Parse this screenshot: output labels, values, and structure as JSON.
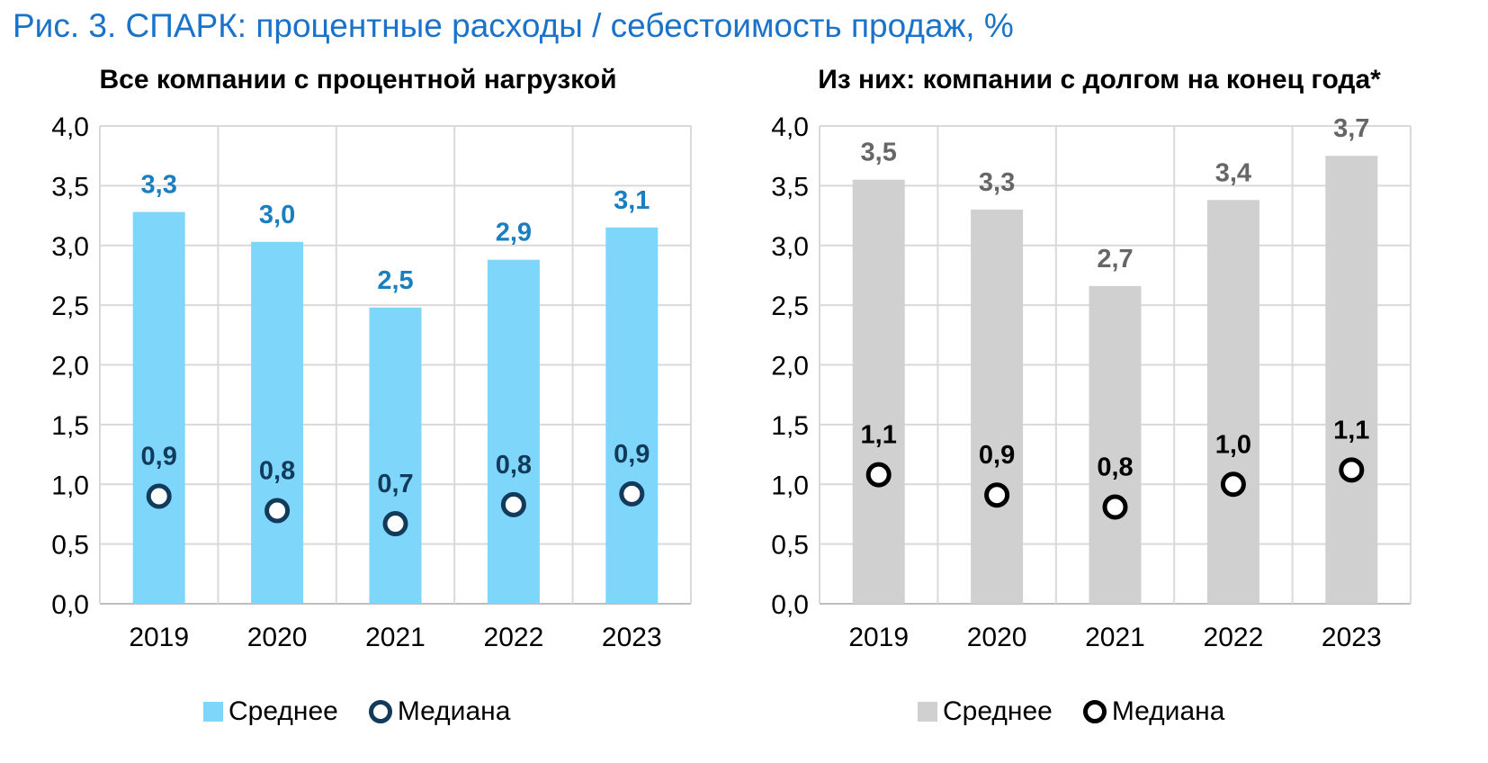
{
  "figure_title": "Рис. 3. СПАРК: процентные расходы / себестоимость продаж, %",
  "chart_data": [
    {
      "type": "bar",
      "title": "Все компании с процентной нагрузкой",
      "categories": [
        "2019",
        "2020",
        "2021",
        "2022",
        "2023"
      ],
      "ylim": [
        0,
        4
      ],
      "yticks": [
        "0,0",
        "0,5",
        "1,0",
        "1,5",
        "2,0",
        "2,5",
        "3,0",
        "3,5",
        "4,0"
      ],
      "grid": true,
      "legend_position": "bottom",
      "series": [
        {
          "name": "Среднее",
          "kind": "bar",
          "values": [
            3.28,
            3.03,
            2.48,
            2.88,
            3.15
          ],
          "labels": [
            "3,3",
            "3,0",
            "2,5",
            "2,9",
            "3,1"
          ],
          "color": "#7fd6fb",
          "label_color": "#1a7fc1"
        },
        {
          "name": "Медиана",
          "kind": "marker",
          "values": [
            0.9,
            0.78,
            0.67,
            0.83,
            0.92
          ],
          "labels": [
            "0,9",
            "0,8",
            "0,7",
            "0,8",
            "0,9"
          ],
          "color": "#123a5a",
          "label_color": "#123a5a"
        }
      ]
    },
    {
      "type": "bar",
      "title": "Из них: компании с долгом на конец года*",
      "categories": [
        "2019",
        "2020",
        "2021",
        "2022",
        "2023"
      ],
      "ylim": [
        0,
        4
      ],
      "yticks": [
        "0,0",
        "0,5",
        "1,0",
        "1,5",
        "2,0",
        "2,5",
        "3,0",
        "3,5",
        "4,0"
      ],
      "grid": true,
      "legend_position": "bottom",
      "series": [
        {
          "name": "Среднее",
          "kind": "bar",
          "values": [
            3.55,
            3.3,
            2.66,
            3.38,
            3.75
          ],
          "labels": [
            "3,5",
            "3,3",
            "2,7",
            "3,4",
            "3,7"
          ],
          "color": "#d0d0d0",
          "label_color": "#666666"
        },
        {
          "name": "Медиана",
          "kind": "marker",
          "values": [
            1.08,
            0.91,
            0.81,
            1.0,
            1.12
          ],
          "labels": [
            "1,1",
            "0,9",
            "0,8",
            "1,0",
            "1,1"
          ],
          "color": "#000000",
          "label_color": "#000000"
        }
      ]
    }
  ]
}
